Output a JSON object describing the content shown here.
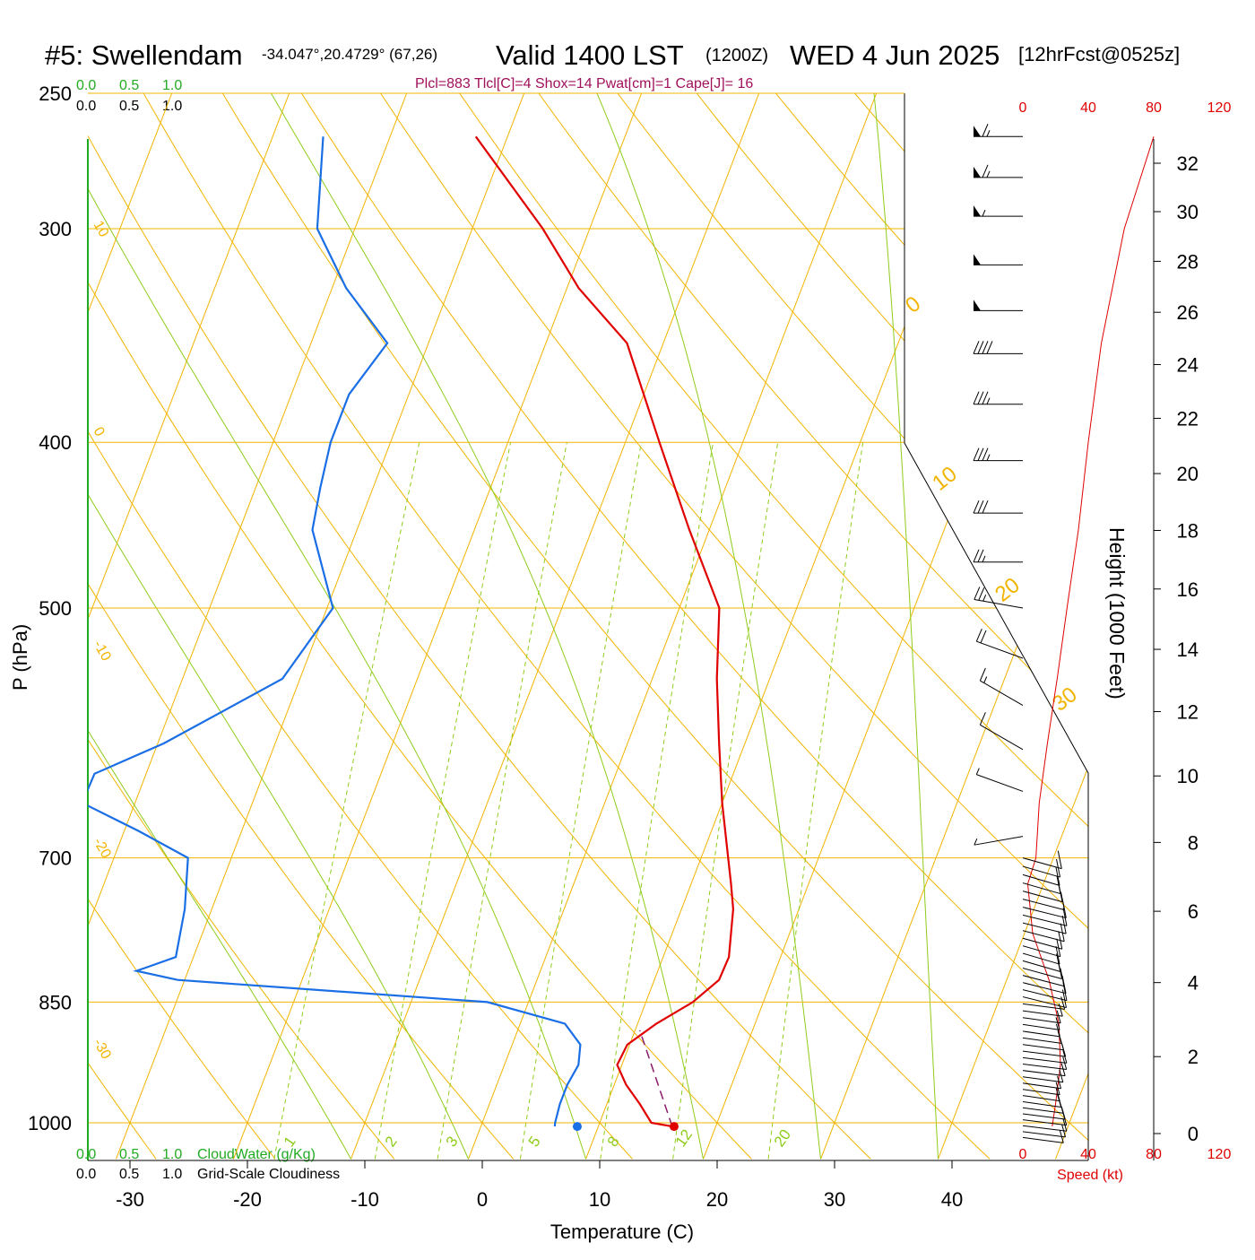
{
  "header": {
    "site": "#5: Swellendam",
    "coords": "-34.047°,20.4729° (67,26)",
    "valid": "Valid 1400 LST",
    "zulu": "(1200Z)",
    "date": "WED 4 Jun 2025",
    "fcst": "[12hrFcst@0525z]",
    "params": "Plcl=883 Tlcl[C]=4 Shox=14 Pwat[cm]=1 Cape[J]= 16"
  },
  "scales": {
    "top_green": [
      "0.0",
      "0.5",
      "1.0"
    ],
    "top_black": [
      "0.0",
      "0.5",
      "1.0"
    ],
    "bottom_green": [
      "0.0",
      "0.5",
      "1.0"
    ],
    "bottom_black": [
      "0.0",
      "0.5",
      "1.0"
    ],
    "cloudwater_label": "CloudWater (g/Kg)",
    "cloudiness_label": "Grid-Scale Cloudiness",
    "speed_label": "Speed (kt)",
    "speed_ticks_top": [
      "0",
      "40",
      "80",
      "120"
    ],
    "speed_ticks_bottom": [
      "0",
      "40",
      "80",
      "120"
    ]
  },
  "colors": {
    "isotherm": "#f2b400",
    "moist_adiabat": "#8fcc1a",
    "mixing_ratio": "#8fcc1a",
    "temperature": "#e00000",
    "dewpoint": "#1a6ee6",
    "parcel": "#8b1a6b",
    "params_text": "#a0105a",
    "green_text": "#22aa22",
    "red_text": "#e00000"
  },
  "chart_data": {
    "type": "line",
    "title": "#5: Swellendam",
    "xlabel": "Temperature (C)",
    "ylabel": "P (hPa)",
    "y2label": "Height (1000 Feet)",
    "x_ticks": [
      -30,
      -20,
      -10,
      0,
      10,
      20,
      30,
      40
    ],
    "y_ticks": [
      250,
      300,
      400,
      500,
      700,
      850,
      1000
    ],
    "height_ticks": [
      0,
      2,
      4,
      6,
      8,
      10,
      12,
      14,
      16,
      18,
      20,
      22,
      24,
      26,
      28,
      30,
      32
    ],
    "isotherm_labels_left": [
      "10",
      "0",
      "-10",
      "-20",
      "-30"
    ],
    "isotherm_labels_right": [
      "0",
      "10",
      "20",
      "30"
    ],
    "mixing_ratio_labels": [
      "1",
      "2",
      "3",
      "5",
      "8",
      "12",
      "20"
    ],
    "series": [
      {
        "name": "Temperature",
        "points": [
          [
            16.3,
            1005
          ],
          [
            14.4,
            1000
          ],
          [
            12.8,
            975
          ],
          [
            11.0,
            950
          ],
          [
            9.6,
            925
          ],
          [
            9.8,
            900
          ],
          [
            11.6,
            875
          ],
          [
            14.0,
            850
          ],
          [
            15.5,
            825
          ],
          [
            15.6,
            800
          ],
          [
            14.4,
            750
          ],
          [
            13.4,
            725
          ],
          [
            12.3,
            700
          ],
          [
            10.0,
            650
          ],
          [
            7.8,
            600
          ],
          [
            5.5,
            550
          ],
          [
            3.4,
            500
          ],
          [
            -1.7,
            450
          ],
          [
            -7.1,
            400
          ],
          [
            -13.1,
            350
          ],
          [
            -19.0,
            325
          ],
          [
            -24.0,
            300
          ],
          [
            -32.7,
            265
          ]
        ]
      },
      {
        "name": "Dewpoint",
        "points": [
          [
            6.3,
            1005
          ],
          [
            6.2,
            1000
          ],
          [
            6.0,
            975
          ],
          [
            6.0,
            950
          ],
          [
            6.3,
            925
          ],
          [
            5.8,
            900
          ],
          [
            3.8,
            875
          ],
          [
            -3.5,
            850
          ],
          [
            -30.6,
            825
          ],
          [
            -34.4,
            815
          ],
          [
            -33.8,
            812
          ],
          [
            -31.5,
            800
          ],
          [
            -32.3,
            750
          ],
          [
            -33.7,
            700
          ],
          [
            -38.8,
            675
          ],
          [
            -44.5,
            650
          ],
          [
            -44.4,
            625
          ],
          [
            -39.5,
            600
          ],
          [
            -31.5,
            550
          ],
          [
            -29.5,
            500
          ],
          [
            -33.8,
            450
          ],
          [
            -34.5,
            425
          ],
          [
            -35.1,
            400
          ],
          [
            -35.1,
            375
          ],
          [
            -33.5,
            350
          ],
          [
            -38.8,
            325
          ],
          [
            -43.2,
            300
          ],
          [
            -45.7,
            265
          ]
        ]
      },
      {
        "name": "Parcel",
        "points": [
          [
            16.3,
            1005
          ],
          [
            10.4,
            883
          ]
        ]
      },
      {
        "name": "Wind speed (kt)",
        "points": [
          [
            18,
            1005
          ],
          [
            20,
            975
          ],
          [
            23,
            925
          ],
          [
            22,
            875
          ],
          [
            16,
            825
          ],
          [
            6,
            775
          ],
          [
            3,
            725
          ],
          [
            8,
            700
          ],
          [
            10,
            650
          ],
          [
            15,
            600
          ],
          [
            21,
            550
          ],
          [
            27,
            500
          ],
          [
            34,
            450
          ],
          [
            40,
            400
          ],
          [
            48,
            350
          ],
          [
            62,
            300
          ],
          [
            80,
            265
          ]
        ]
      }
    ],
    "wind_barbs": [
      {
        "p": 265,
        "dir": 270,
        "spd": 65
      },
      {
        "p": 280,
        "dir": 270,
        "spd": 65
      },
      {
        "p": 295,
        "dir": 270,
        "spd": 55
      },
      {
        "p": 315,
        "dir": 270,
        "spd": 50
      },
      {
        "p": 335,
        "dir": 270,
        "spd": 50
      },
      {
        "p": 355,
        "dir": 270,
        "spd": 40
      },
      {
        "p": 380,
        "dir": 270,
        "spd": 35
      },
      {
        "p": 410,
        "dir": 270,
        "spd": 35
      },
      {
        "p": 440,
        "dir": 270,
        "spd": 30
      },
      {
        "p": 470,
        "dir": 270,
        "spd": 25
      },
      {
        "p": 500,
        "dir": 280,
        "spd": 25
      },
      {
        "p": 535,
        "dir": 290,
        "spd": 20
      },
      {
        "p": 570,
        "dir": 300,
        "spd": 15
      },
      {
        "p": 605,
        "dir": 300,
        "spd": 10
      },
      {
        "p": 640,
        "dir": 290,
        "spd": 5
      },
      {
        "p": 680,
        "dir": 260,
        "spd": 5
      }
    ]
  }
}
